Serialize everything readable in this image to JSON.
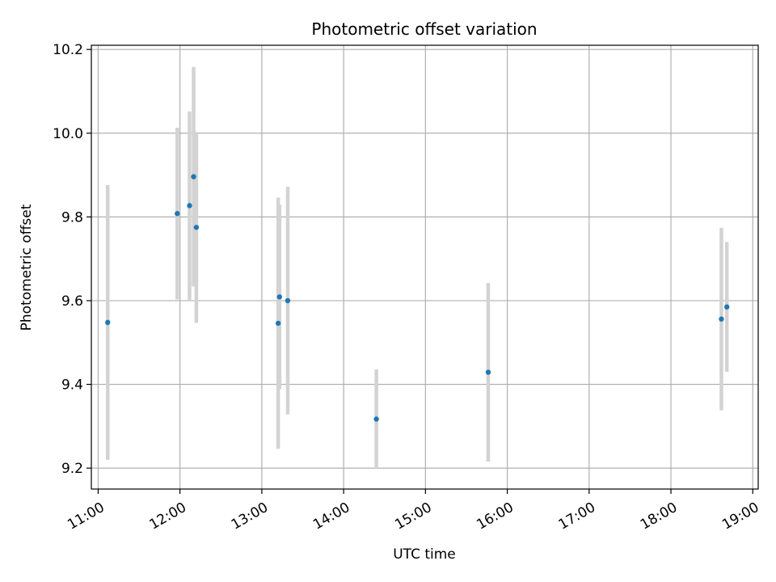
{
  "chart_data": {
    "type": "scatter",
    "title": "Photometric offset variation",
    "xlabel": "UTC time",
    "ylabel": "Photometric offset",
    "xlim": [
      "10:55",
      "19:04"
    ],
    "ylim": [
      9.15,
      10.21
    ],
    "x_ticks": [
      "11:00",
      "12:00",
      "13:00",
      "14:00",
      "15:00",
      "16:00",
      "17:00",
      "18:00",
      "19:00"
    ],
    "y_ticks": [
      9.2,
      9.4,
      9.6,
      9.8,
      10.0,
      10.2
    ],
    "y_tick_labels": [
      "9.2",
      "9.4",
      "9.6",
      "9.8",
      "10.0",
      "10.2"
    ],
    "grid": true,
    "point_color": "#1f77b4",
    "errorbar_color": "#d3d3d3",
    "points": [
      {
        "time": "11:07",
        "y": 9.548,
        "err": 0.328
      },
      {
        "time": "11:58",
        "y": 9.808,
        "err": 0.205
      },
      {
        "time": "12:07",
        "y": 9.827,
        "err": 0.225
      },
      {
        "time": "12:10",
        "y": 9.896,
        "err": 0.262
      },
      {
        "time": "12:12",
        "y": 9.775,
        "err": 0.228
      },
      {
        "time": "13:12",
        "y": 9.546,
        "err": 0.3
      },
      {
        "time": "13:13",
        "y": 9.609,
        "err": 0.22
      },
      {
        "time": "13:19",
        "y": 9.6,
        "err": 0.272
      },
      {
        "time": "14:24",
        "y": 9.317,
        "err": 0.119
      },
      {
        "time": "15:46",
        "y": 9.429,
        "err": 0.213
      },
      {
        "time": "18:37",
        "y": 9.556,
        "err": 0.218
      },
      {
        "time": "18:41",
        "y": 9.585,
        "err": 0.155
      }
    ]
  }
}
